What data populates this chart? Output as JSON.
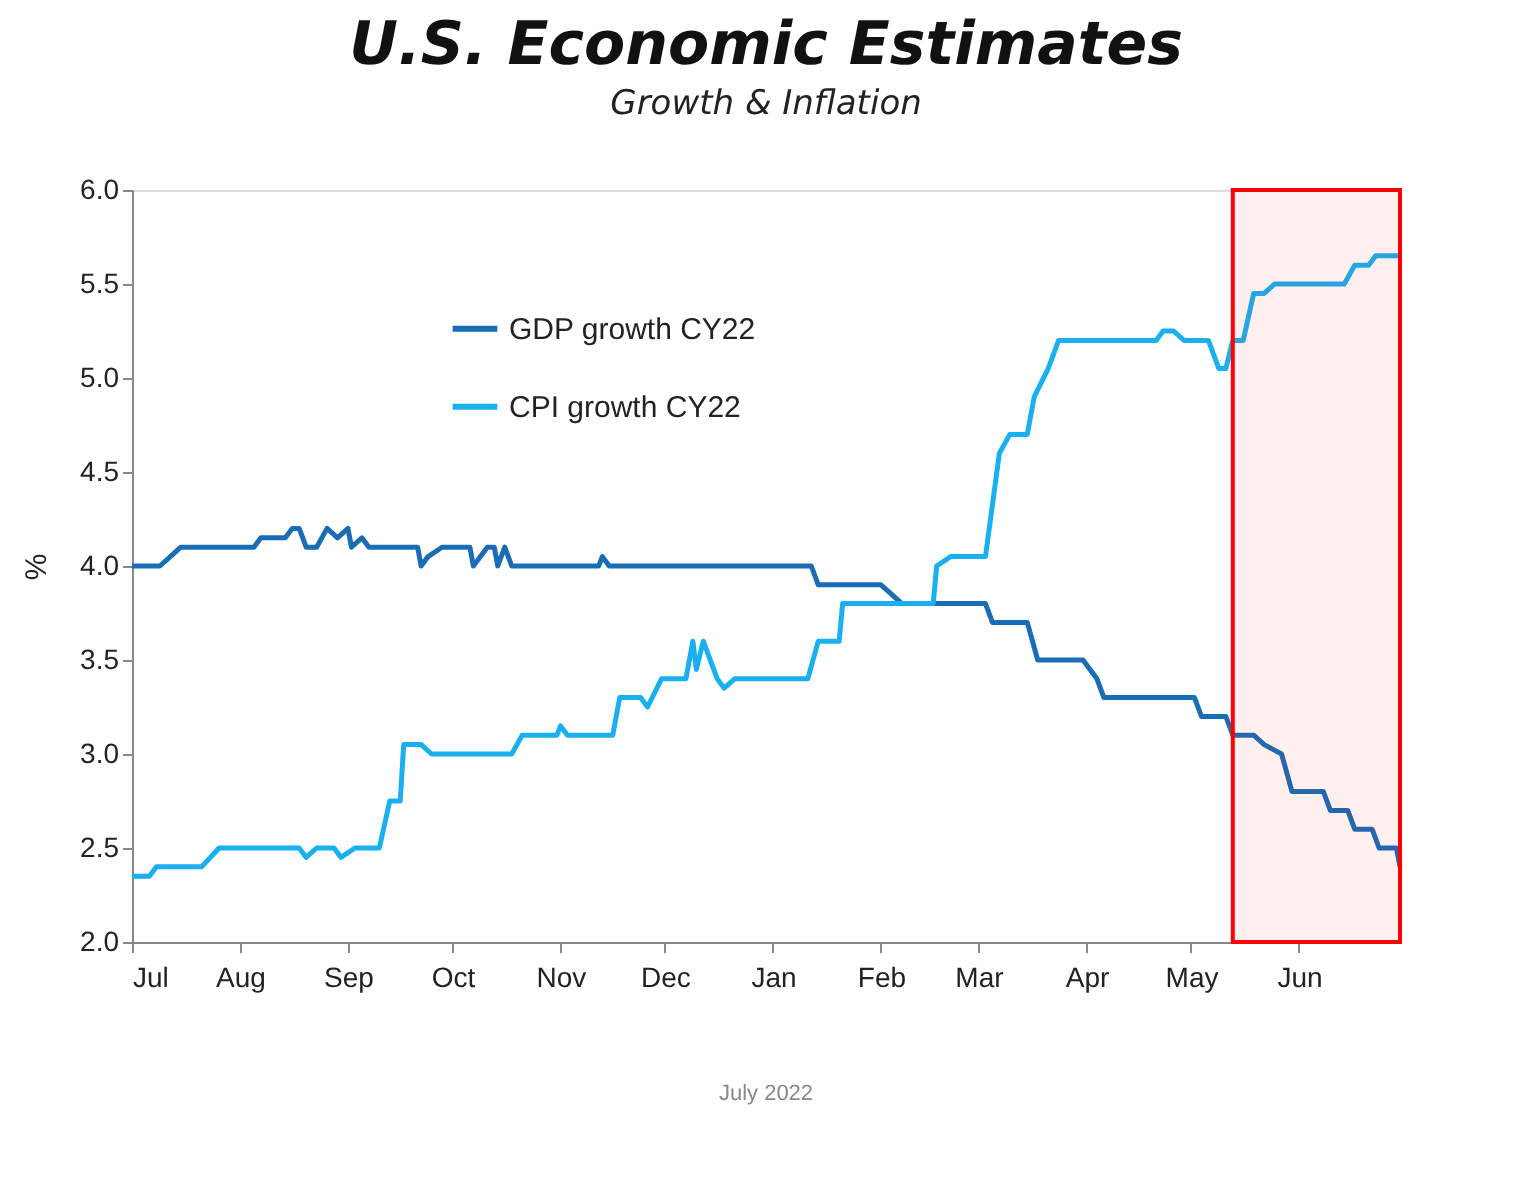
{
  "chart_data": {
    "type": "line",
    "title": "U.S. Economic Estimates",
    "subtitle": "Growth & Inflation",
    "ylabel": "%",
    "annotations": [
      "July 2022"
    ],
    "xlim": [
      "2021-07-01",
      "2022-06-30"
    ],
    "xticks": [
      {
        "value": "2021-07-01",
        "label": "Jul"
      },
      {
        "value": "2021-08-01",
        "label": "Aug"
      },
      {
        "value": "2021-09-01",
        "label": "Sep"
      },
      {
        "value": "2021-10-01",
        "label": "Oct"
      },
      {
        "value": "2021-11-01",
        "label": "Nov"
      },
      {
        "value": "2021-12-01",
        "label": "Dec"
      },
      {
        "value": "2022-01-01",
        "label": "Jan"
      },
      {
        "value": "2022-02-01",
        "label": "Feb"
      },
      {
        "value": "2022-03-01",
        "label": "Mar"
      },
      {
        "value": "2022-04-01",
        "label": "Apr"
      },
      {
        "value": "2022-05-01",
        "label": "May"
      },
      {
        "value": "2022-06-01",
        "label": "Jun"
      }
    ],
    "ylim": [
      2.0,
      6.0
    ],
    "yticks": [
      {
        "value": 2.0,
        "label": "2.0"
      },
      2.5,
      {
        "value": 3.0,
        "label": "3.0"
      },
      3.5,
      {
        "value": 4.0,
        "label": "4.0"
      },
      4.5,
      {
        "value": 5.0,
        "label": "5.0"
      },
      5.5,
      {
        "value": 6.0,
        "label": "6.0"
      }
    ],
    "grid": false,
    "legend": "top left",
    "marker": "none",
    "line_style": "solid",
    "bands": [
      {
        "axis": "x",
        "from": "2022-05-13",
        "to": "2022-06-30",
        "color": "#ff0000"
      }
    ],
    "series": [
      {
        "name": "GDP growth CY22",
        "color": "#1a6db5",
        "x": [
          "2021-07-01",
          "2021-07-09",
          "2021-07-12",
          "2021-07-15",
          "2021-08-05",
          "2021-08-07",
          "2021-08-14",
          "2021-08-16",
          "2021-08-18",
          "2021-08-20",
          "2021-08-23",
          "2021-08-26",
          "2021-08-29",
          "2021-09-01",
          "2021-09-02",
          "2021-09-05",
          "2021-09-07",
          "2021-09-21",
          "2021-09-22",
          "2021-09-24",
          "2021-09-28",
          "2021-10-06",
          "2021-10-07",
          "2021-10-11",
          "2021-10-13",
          "2021-10-14",
          "2021-10-16",
          "2021-10-18",
          "2021-11-12",
          "2021-11-13",
          "2021-11-15",
          "2022-01-12",
          "2022-01-14",
          "2022-02-01",
          "2022-02-04",
          "2022-02-07",
          "2022-03-03",
          "2022-03-05",
          "2022-03-15",
          "2022-03-18",
          "2022-03-31",
          "2022-04-04",
          "2022-04-06",
          "2022-05-02",
          "2022-05-04",
          "2022-05-11",
          "2022-05-13",
          "2022-05-19",
          "2022-05-22",
          "2022-05-27",
          "2022-05-30",
          "2022-06-08",
          "2022-06-10",
          "2022-06-15",
          "2022-06-17",
          "2022-06-22",
          "2022-06-24",
          "2022-06-29",
          "2022-06-30"
        ],
        "values": [
          4.0,
          4.0,
          4.05,
          4.1,
          4.1,
          4.15,
          4.15,
          4.2,
          4.2,
          4.1,
          4.1,
          4.2,
          4.15,
          4.2,
          4.1,
          4.15,
          4.1,
          4.1,
          4.0,
          4.05,
          4.1,
          4.1,
          4.0,
          4.1,
          4.1,
          4.0,
          4.1,
          4.0,
          4.0,
          4.05,
          4.0,
          4.0,
          3.9,
          3.9,
          3.85,
          3.8,
          3.8,
          3.7,
          3.7,
          3.5,
          3.5,
          3.4,
          3.3,
          3.3,
          3.2,
          3.2,
          3.1,
          3.1,
          3.05,
          3.0,
          2.8,
          2.8,
          2.7,
          2.7,
          2.6,
          2.6,
          2.5,
          2.5,
          2.4
        ]
      },
      {
        "name": "CPI growth CY22",
        "color": "#1ab0f0",
        "x": [
          "2021-07-01",
          "2021-07-06",
          "2021-07-08",
          "2021-07-21",
          "2021-07-26",
          "2021-08-18",
          "2021-08-20",
          "2021-08-23",
          "2021-08-28",
          "2021-08-30",
          "2021-09-03",
          "2021-09-10",
          "2021-09-13",
          "2021-09-16",
          "2021-09-17",
          "2021-09-22",
          "2021-09-25",
          "2021-10-18",
          "2021-10-21",
          "2021-10-31",
          "2021-11-01",
          "2021-11-03",
          "2021-11-16",
          "2021-11-18",
          "2021-11-24",
          "2021-11-26",
          "2021-11-30",
          "2021-12-07",
          "2021-12-09",
          "2021-12-10",
          "2021-12-12",
          "2021-12-16",
          "2021-12-18",
          "2021-12-21",
          "2022-01-11",
          "2022-01-14",
          "2022-01-20",
          "2022-01-21",
          "2022-02-16",
          "2022-02-17",
          "2022-02-21",
          "2022-03-03",
          "2022-03-07",
          "2022-03-10",
          "2022-03-15",
          "2022-03-17",
          "2022-03-21",
          "2022-03-24",
          "2022-04-21",
          "2022-04-23",
          "2022-04-26",
          "2022-04-29",
          "2022-05-06",
          "2022-05-09",
          "2022-05-11",
          "2022-05-13",
          "2022-05-16",
          "2022-05-19",
          "2022-05-22",
          "2022-05-25",
          "2022-06-14",
          "2022-06-17",
          "2022-06-21",
          "2022-06-23",
          "2022-06-30"
        ],
        "values": [
          2.35,
          2.35,
          2.4,
          2.4,
          2.5,
          2.5,
          2.45,
          2.5,
          2.5,
          2.45,
          2.5,
          2.5,
          2.75,
          2.75,
          3.05,
          3.05,
          3.0,
          3.0,
          3.1,
          3.1,
          3.15,
          3.1,
          3.1,
          3.3,
          3.3,
          3.25,
          3.4,
          3.4,
          3.6,
          3.45,
          3.6,
          3.4,
          3.35,
          3.4,
          3.4,
          3.6,
          3.6,
          3.8,
          3.8,
          4.0,
          4.05,
          4.05,
          4.6,
          4.7,
          4.7,
          4.9,
          5.05,
          5.2,
          5.2,
          5.25,
          5.25,
          5.2,
          5.2,
          5.05,
          5.05,
          5.2,
          5.2,
          5.45,
          5.45,
          5.5,
          5.5,
          5.6,
          5.6,
          5.65,
          5.65
        ]
      }
    ]
  }
}
